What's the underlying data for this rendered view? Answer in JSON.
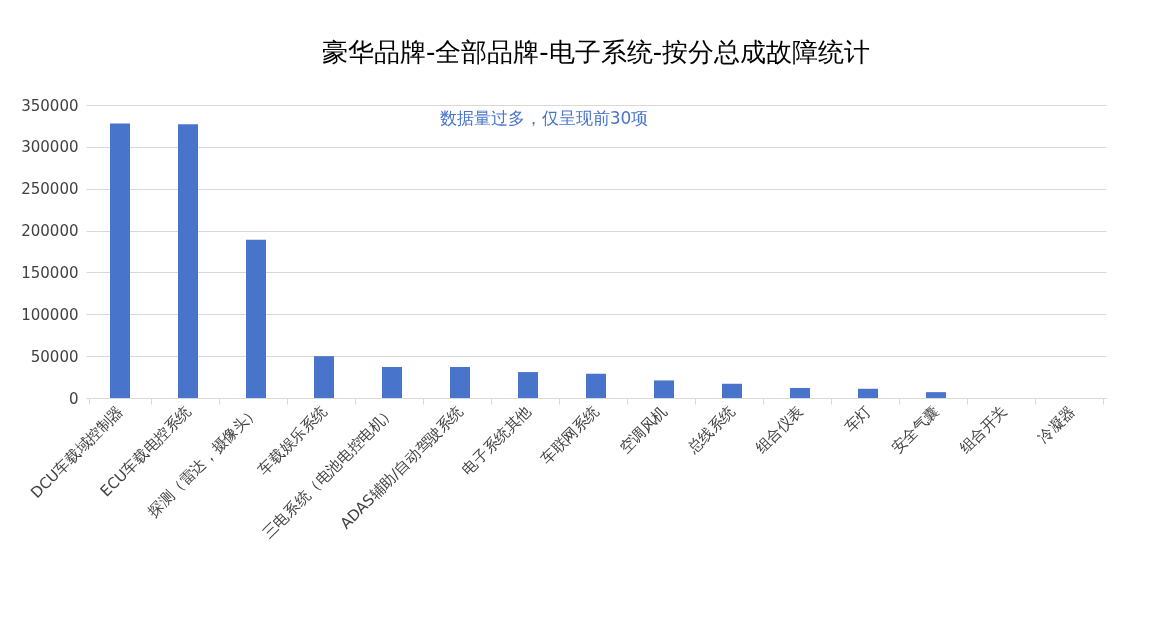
{
  "chart_data": {
    "type": "bar",
    "title": "豪华品牌-全部品牌-电子系统-按分总成故障统计",
    "categories": [
      "DCU车载域控制器",
      "ECU车载电控系统",
      "探测（雷达，摄像头）",
      "车载娱乐系统",
      "三电系统（电池电控电机）",
      "ADAS辅助/自动驾驶系统",
      "电子系统其他",
      "车联网系统",
      "空调风机",
      "总线系统",
      "组合仪表",
      "车灯",
      "安全气囊",
      "组合开关",
      "冷凝器"
    ],
    "values": [
      328000,
      327000,
      189000,
      50000,
      37000,
      37000,
      31000,
      29000,
      21000,
      17000,
      12000,
      11000,
      7000,
      0,
      0
    ],
    "color": "#4874cb",
    "ylim": [
      0,
      350000
    ],
    "yticks": [
      0,
      50000,
      100000,
      150000,
      200000,
      250000,
      300000,
      350000
    ],
    "grid": "y",
    "annotations": [
      "数据量过多，仅呈现前30项"
    ]
  }
}
